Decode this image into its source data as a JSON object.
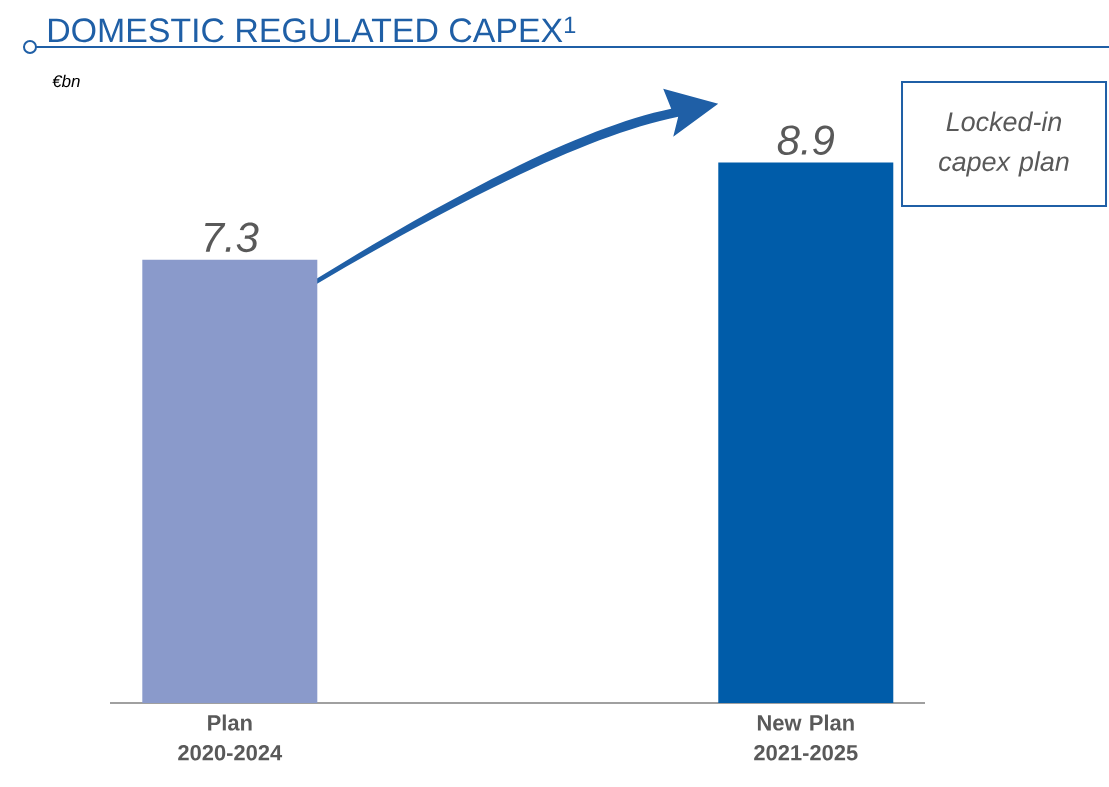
{
  "chart_data": {
    "type": "bar",
    "title": "DOMESTIC REGULATED CAPEX$^{1}$",
    "ylabel": "€bn",
    "categories": [
      "Plan 2020-2024",
      "New Plan 2021-2025"
    ],
    "values": [
      7.3,
      8.9
    ],
    "colors": [
      "#8a9acb",
      "#005ca9"
    ],
    "data_labels": true,
    "annotations": [
      "Locked-in capex plan"
    ]
  }
}
